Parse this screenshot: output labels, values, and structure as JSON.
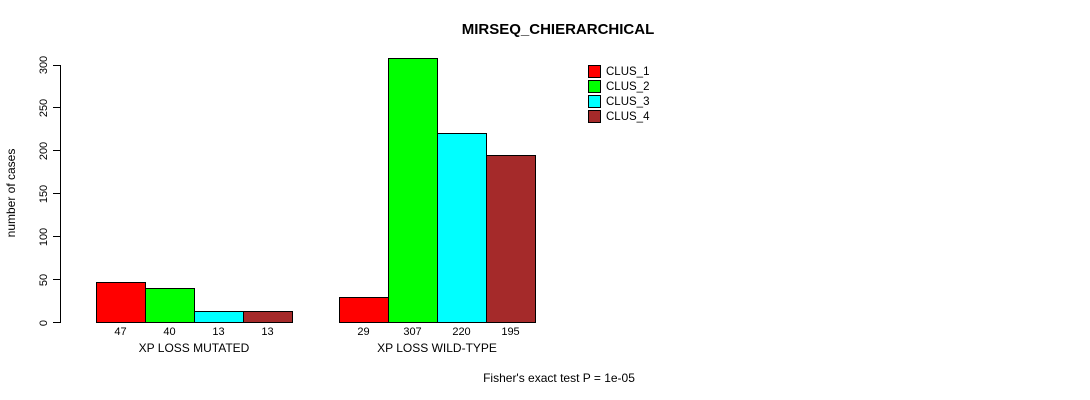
{
  "chart_data": {
    "type": "bar",
    "title": "MIRSEQ_CHIERARCHICAL",
    "xlabel": "",
    "ylabel": "number of cases",
    "ylim": [
      0,
      300
    ],
    "yticks": [
      0,
      50,
      100,
      150,
      200,
      250,
      300
    ],
    "grid": false,
    "legend_position": "top-right",
    "categories": [
      "XP LOSS MUTATED",
      "XP LOSS WILD-TYPE"
    ],
    "series": [
      {
        "name": "CLUS_1",
        "color": "#FF0000",
        "values": [
          47,
          29
        ]
      },
      {
        "name": "CLUS_2",
        "color": "#00FF00",
        "values": [
          40,
          307
        ]
      },
      {
        "name": "CLUS_3",
        "color": "#00FFFF",
        "values": [
          13,
          220
        ]
      },
      {
        "name": "CLUS_4",
        "color": "#A52A2A",
        "values": [
          13,
          195
        ]
      }
    ],
    "bar_value_labels": [
      [
        47,
        40,
        13,
        13
      ],
      [
        29,
        307,
        220,
        195
      ]
    ],
    "annotation": "Fisher's exact test P = 1e-05"
  }
}
